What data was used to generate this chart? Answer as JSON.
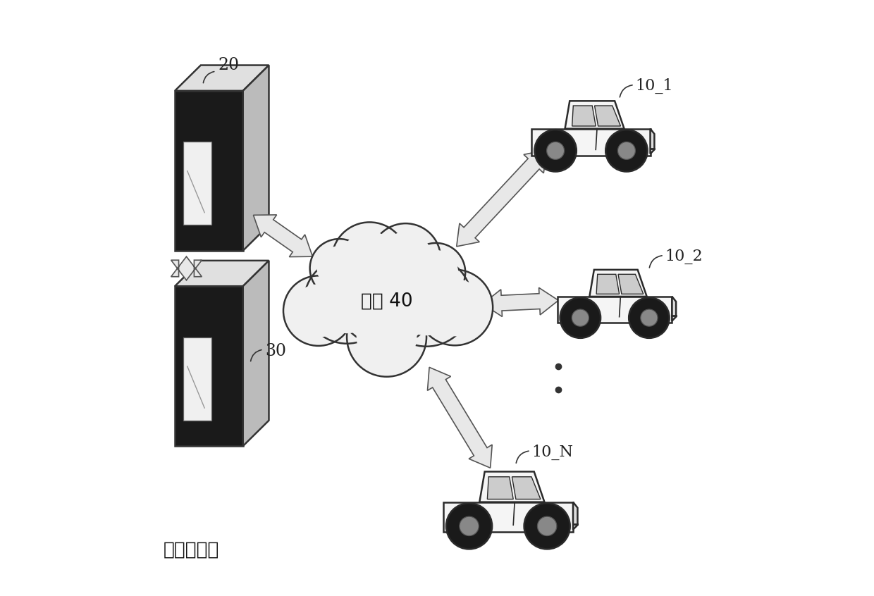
{
  "bg_color": "#ffffff",
  "title": "",
  "labels": {
    "label_20": "20",
    "label_30": "30",
    "label_network": "网络 40",
    "label_10_1": "10_1",
    "label_10_2": "10_2",
    "label_10_N": "10_N",
    "label_signal": "信号接收方"
  },
  "box_dark": "#1a1a1a",
  "box_lighter": "#bbbbbb",
  "box_top": "#e0e0e0",
  "arrow_fill": "#e8e8e8",
  "arrow_edge": "#555555",
  "cloud_fill": "#f0f0f0",
  "cloud_edge": "#333333",
  "text_color": "#222222"
}
